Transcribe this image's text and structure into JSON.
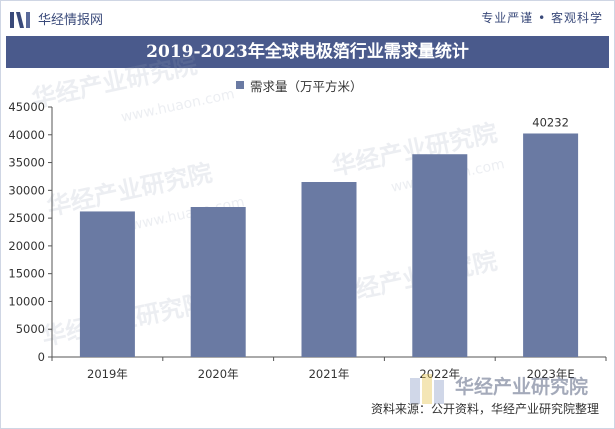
{
  "header": {
    "site_name": "华经情报网",
    "tagline": "专业严谨 • 客观科学"
  },
  "chart_data": {
    "type": "bar",
    "title": "2019-2023年全球电极箔行业需求量统计",
    "legend": [
      "需求量（万平方米）"
    ],
    "legend_position": "top-center",
    "categories": [
      "2019年",
      "2020年",
      "2021年",
      "2022年",
      "2023年E"
    ],
    "series": [
      {
        "name": "需求量（万平方米）",
        "values": [
          26200,
          27000,
          31500,
          36500,
          40232
        ]
      }
    ],
    "data_labels": [
      "",
      "",
      "",
      "",
      "40232"
    ],
    "ylim": [
      0,
      45000
    ],
    "yticks": [
      "0",
      "5000",
      "10000",
      "15000",
      "20000",
      "25000",
      "30000",
      "35000",
      "40000",
      "45000"
    ],
    "grid": false,
    "xlabel": "",
    "ylabel": "",
    "colors": {
      "bar": "#6a7aa3",
      "title_bar": "#4a5a8c"
    }
  },
  "footer": {
    "source": "资料来源：公开资料，华经产业研究院整理"
  },
  "watermark": {
    "text": "华经产业研究院",
    "url": "www.huaon.com"
  }
}
